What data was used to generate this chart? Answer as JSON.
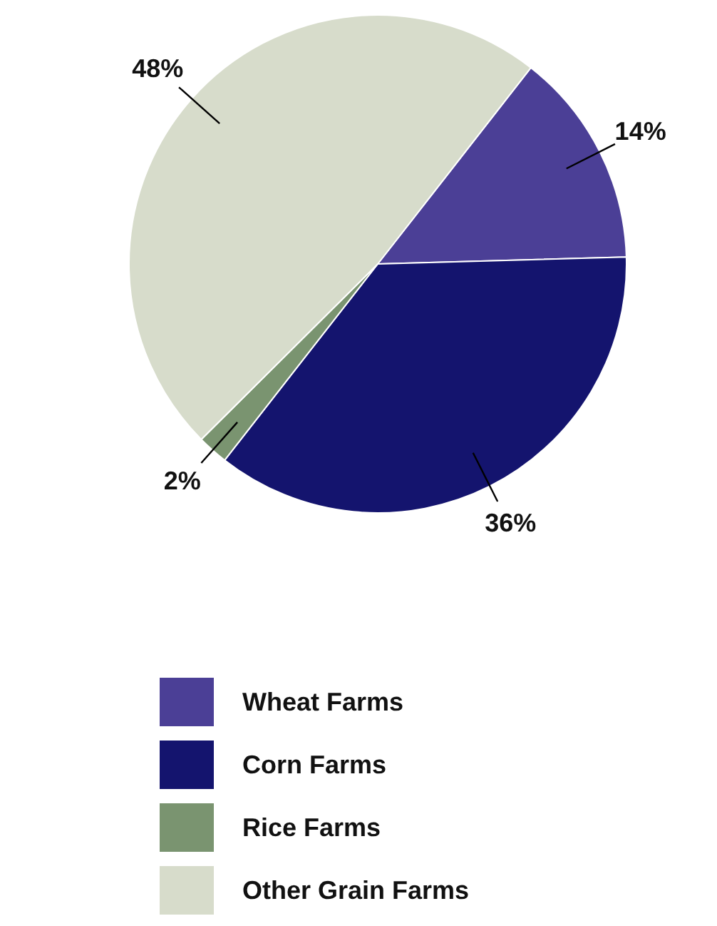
{
  "chart_data": {
    "type": "pie",
    "categories": [
      "Wheat Farms",
      "Corn Farms",
      "Rice Farms",
      "Other Grain Farms"
    ],
    "values": [
      14,
      36,
      2,
      48
    ],
    "colors": [
      "#4b3f96",
      "#14146e",
      "#7a9470",
      "#d7dccb"
    ],
    "value_labels": [
      "14%",
      "36%",
      "2%",
      "48%"
    ],
    "legend": "bottom"
  }
}
